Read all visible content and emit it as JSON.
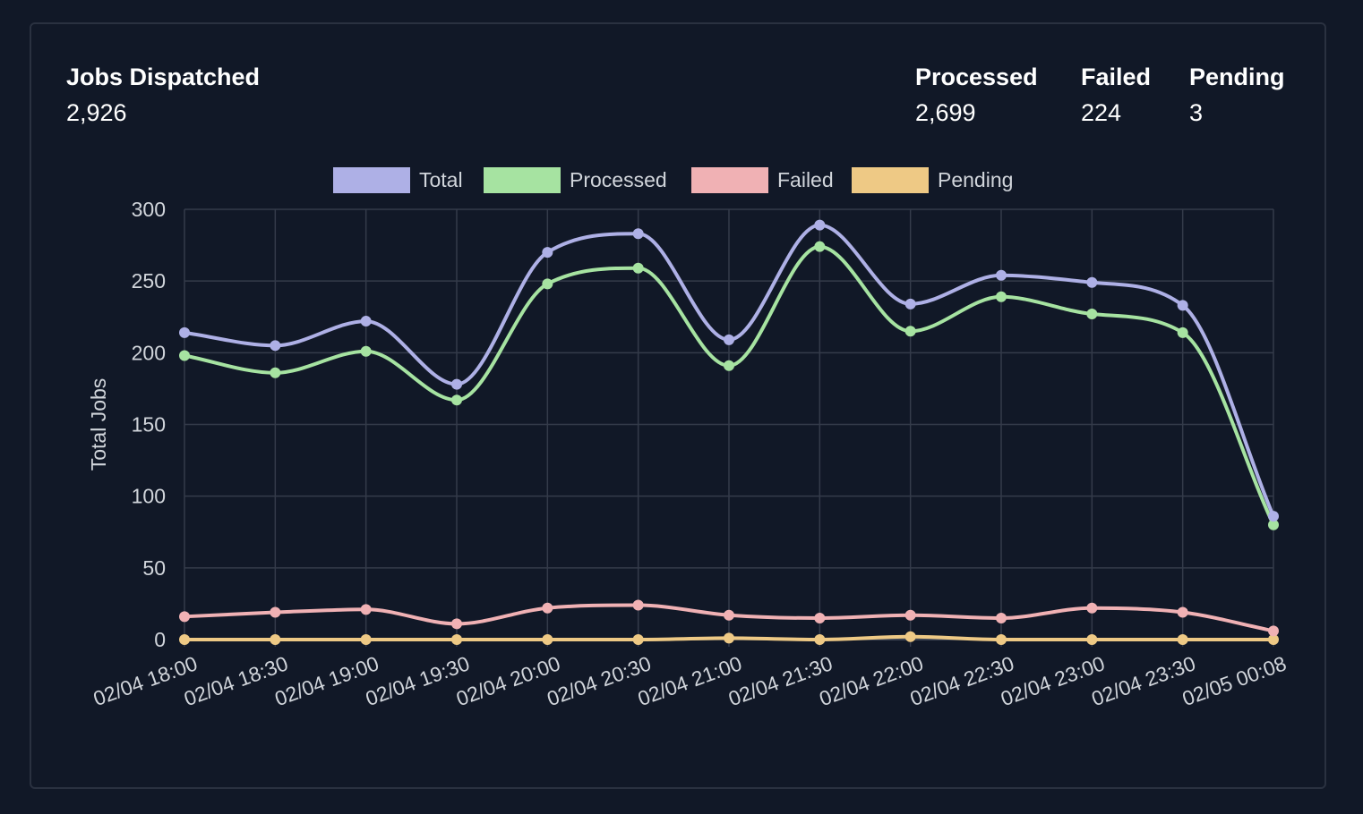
{
  "summary": {
    "dispatched": {
      "label": "Jobs Dispatched",
      "value": "2,926"
    },
    "processed": {
      "label": "Processed",
      "value": "2,699"
    },
    "failed": {
      "label": "Failed",
      "value": "224"
    },
    "pending": {
      "label": "Pending",
      "value": "3"
    }
  },
  "chart_data": {
    "type": "line",
    "title": "",
    "xlabel": "",
    "ylabel": "Total Jobs",
    "ylim": [
      0,
      300
    ],
    "yticks": [
      0,
      50,
      100,
      150,
      200,
      250,
      300
    ],
    "grid": true,
    "legend_position": "top-center",
    "categories": [
      "02/04 18:00",
      "02/04 18:30",
      "02/04 19:00",
      "02/04 19:30",
      "02/04 20:00",
      "02/04 20:30",
      "02/04 21:00",
      "02/04 21:30",
      "02/04 22:00",
      "02/04 22:30",
      "02/04 23:00",
      "02/04 23:30",
      "02/05 00:08"
    ],
    "series": [
      {
        "name": "Total",
        "color": "#aeb0e6",
        "values": [
          214,
          205,
          222,
          178,
          270,
          283,
          209,
          289,
          234,
          254,
          249,
          233,
          86
        ]
      },
      {
        "name": "Processed",
        "color": "#a6e3a1",
        "values": [
          198,
          186,
          201,
          167,
          248,
          259,
          191,
          274,
          215,
          239,
          227,
          214,
          80
        ]
      },
      {
        "name": "Failed",
        "color": "#f0b1b4",
        "values": [
          16,
          19,
          21,
          11,
          22,
          24,
          17,
          15,
          17,
          15,
          22,
          19,
          6
        ]
      },
      {
        "name": "Pending",
        "color": "#eec985",
        "values": [
          0,
          0,
          0,
          0,
          0,
          0,
          1,
          0,
          2,
          0,
          0,
          0,
          0
        ]
      }
    ]
  }
}
